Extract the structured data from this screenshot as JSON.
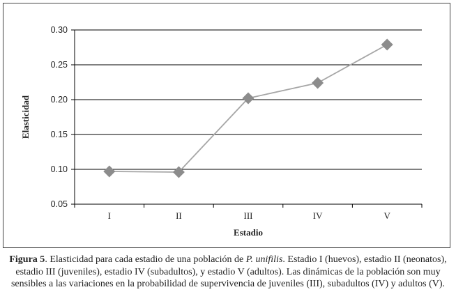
{
  "chart_data": {
    "type": "line",
    "categories": [
      "I",
      "II",
      "III",
      "IV",
      "V"
    ],
    "values": [
      0.097,
      0.096,
      0.202,
      0.224,
      0.279
    ],
    "xlabel": "Estadio",
    "ylabel": "Elasticidad",
    "ylim": [
      0.05,
      0.3
    ],
    "yticks": [
      "0.05",
      "0.10",
      "0.15",
      "0.20",
      "0.25",
      "0.30"
    ],
    "grid": true,
    "marker": "diamond",
    "colors": {
      "line": "#a6a6a6",
      "marker": "#8c8c8c",
      "grid": "#000000"
    }
  },
  "caption": {
    "label": "Figura 5",
    "before_species": ". Elasticidad para cada estadio de una población de ",
    "species": "P. unifilis",
    "after_species": ". Estadio I (huevos), estadio II (neonatos), estadio III (juveniles), estadio IV (subadultos), y estadio V (adultos). Las dinámicas de la población son muy sensibles a las variaciones en la probabilidad de supervivencia de juveniles (III), subadultos (IV) y adultos (V)."
  }
}
